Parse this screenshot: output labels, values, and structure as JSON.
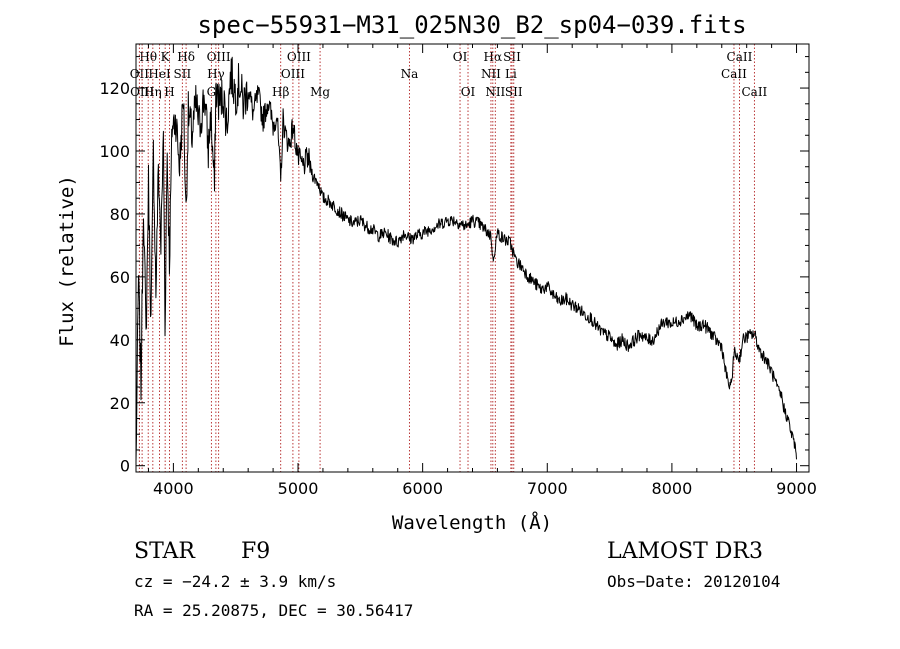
{
  "chart_data": {
    "type": "line",
    "title": "spec−55931−M31_025N30_B2_sp04−039.fits",
    "xlabel": "Wavelength (Å)",
    "ylabel": "Flux (relative)",
    "xlim": [
      3700,
      9100
    ],
    "ylim": [
      -2,
      134
    ],
    "xticks": [
      4000,
      5000,
      6000,
      7000,
      8000,
      9000
    ],
    "xtick_labels": [
      "4000",
      "5000",
      "6000",
      "7000",
      "8000",
      "9000"
    ],
    "yticks": [
      0,
      20,
      40,
      60,
      80,
      100,
      120
    ],
    "ytick_labels": [
      "0",
      "20",
      "40",
      "60",
      "80",
      "100",
      "120"
    ],
    "grid": false,
    "series": [
      {
        "name": "flux",
        "x": [
          3700,
          3720,
          3740,
          3760,
          3780,
          3800,
          3820,
          3840,
          3860,
          3880,
          3900,
          3920,
          3933,
          3950,
          3968,
          3990,
          4020,
          4050,
          4080,
          4101,
          4120,
          4150,
          4180,
          4210,
          4250,
          4280,
          4300,
          4330,
          4340,
          4370,
          4400,
          4430,
          4460,
          4500,
          4530,
          4560,
          4600,
          4640,
          4680,
          4720,
          4760,
          4800,
          4830,
          4861,
          4880,
          4900,
          4930,
          4960,
          5000,
          5040,
          5080,
          5120,
          5160,
          5200,
          5250,
          5300,
          5350,
          5400,
          5450,
          5500,
          5550,
          5600,
          5650,
          5700,
          5750,
          5800,
          5850,
          5900,
          5950,
          6000,
          6050,
          6100,
          6150,
          6200,
          6250,
          6300,
          6350,
          6400,
          6450,
          6500,
          6550,
          6563,
          6600,
          6650,
          6700,
          6750,
          6800,
          6850,
          6900,
          6950,
          7000,
          7050,
          7100,
          7150,
          7200,
          7250,
          7300,
          7350,
          7400,
          7450,
          7500,
          7550,
          7600,
          7650,
          7700,
          7750,
          7800,
          7850,
          7900,
          7950,
          8000,
          8050,
          8100,
          8150,
          8200,
          8250,
          8300,
          8350,
          8400,
          8430,
          8470,
          8500,
          8542,
          8570,
          8600,
          8662,
          8700,
          8750,
          8800,
          8850,
          8880,
          8900,
          8930,
          8960,
          8990,
          9000
        ],
        "y": [
          0,
          60,
          25,
          85,
          40,
          90,
          45,
          100,
          55,
          95,
          70,
          105,
          45,
          100,
          65,
          108,
          110,
          95,
          118,
          80,
          112,
          105,
          115,
          108,
          118,
          100,
          112,
          88,
          120,
          115,
          118,
          108,
          125,
          118,
          122,
          115,
          120,
          112,
          118,
          110,
          116,
          108,
          112,
          90,
          110,
          105,
          102,
          108,
          98,
          95,
          98,
          92,
          90,
          85,
          84,
          82,
          80,
          78,
          77,
          78,
          76,
          75,
          73,
          74,
          72,
          71,
          74,
          72,
          73,
          74,
          75,
          76,
          77,
          78,
          78,
          77,
          76,
          78,
          77,
          75,
          73,
          65,
          74,
          72,
          71,
          65,
          63,
          60,
          58,
          56,
          57,
          54,
          52,
          53,
          51,
          50,
          48,
          47,
          44,
          42,
          41,
          38,
          40,
          38,
          40,
          42,
          40,
          40,
          44,
          46,
          45,
          46,
          47,
          48,
          44,
          45,
          43,
          40,
          38,
          30,
          24,
          36,
          34,
          40,
          41,
          42,
          37,
          34,
          30,
          24,
          22,
          18,
          15,
          10,
          6,
          2
        ]
      }
    ],
    "line_markers": [
      {
        "name": "Hθ",
        "wavelength": 3798,
        "row": 0
      },
      {
        "name": "OII",
        "wavelength": 3727,
        "row": 1
      },
      {
        "name": "OIII",
        "wavelength": 3749,
        "row": 2
      },
      {
        "name": "K",
        "wavelength": 3934,
        "row": 0
      },
      {
        "name": "HeI",
        "wavelength": 3889,
        "row": 1
      },
      {
        "name": "Hη",
        "wavelength": 3835,
        "row": 2
      },
      {
        "name": "Hδ",
        "wavelength": 4102,
        "row": 0
      },
      {
        "name": "SII",
        "wavelength": 4072,
        "row": 1
      },
      {
        "name": "H",
        "wavelength": 3969,
        "row": 2
      },
      {
        "name": "OIII",
        "wavelength": 4363,
        "row": 0
      },
      {
        "name": "Hγ",
        "wavelength": 4341,
        "row": 1
      },
      {
        "name": "G",
        "wavelength": 4305,
        "row": 2
      },
      {
        "name": "OIII",
        "wavelength": 5007,
        "row": 0
      },
      {
        "name": "OIII",
        "wavelength": 4959,
        "row": 1
      },
      {
        "name": "Hβ",
        "wavelength": 4861,
        "row": 2
      },
      {
        "name": "Mg",
        "wavelength": 5177,
        "row": 2
      },
      {
        "name": "Na",
        "wavelength": 5894,
        "row": 1
      },
      {
        "name": "OI",
        "wavelength": 6300,
        "row": 0
      },
      {
        "name": "OI",
        "wavelength": 6364,
        "row": 2
      },
      {
        "name": "Hα",
        "wavelength": 6563,
        "row": 0
      },
      {
        "name": "NII",
        "wavelength": 6548,
        "row": 1
      },
      {
        "name": "NII",
        "wavelength": 6583,
        "row": 2
      },
      {
        "name": "SII",
        "wavelength": 6717,
        "row": 0
      },
      {
        "name": "Li",
        "wavelength": 6708,
        "row": 1
      },
      {
        "name": "SII",
        "wavelength": 6731,
        "row": 2
      },
      {
        "name": "CaII",
        "wavelength": 8542,
        "row": 0
      },
      {
        "name": "CaII",
        "wavelength": 8498,
        "row": 1
      },
      {
        "name": "CaII",
        "wavelength": 8662,
        "row": 2
      }
    ]
  },
  "info": {
    "object_type": "STAR",
    "subclass": "F9",
    "survey": "LAMOST DR3",
    "cz": "cz = −24.2 ± 3.9 km/s",
    "obs_date": "Obs−Date: 20120104",
    "coords": "RA =  25.20875, DEC =  30.56417"
  }
}
